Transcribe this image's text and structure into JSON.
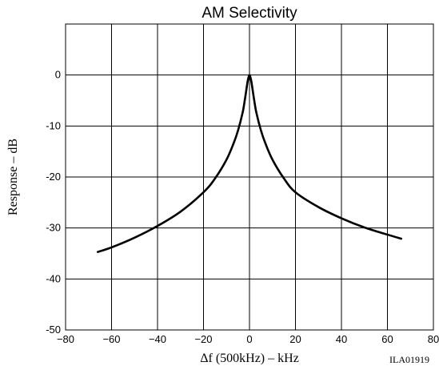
{
  "chart_data": {
    "type": "line",
    "title": "AM Selectivity",
    "xlabel": "Δf (500kHz)  –  kHz",
    "ylabel": "Response  –  dB",
    "figure_code": "ILA01919",
    "xlim": [
      -80,
      80
    ],
    "ylim": [
      -50,
      10
    ],
    "xticks": [
      -80,
      -60,
      -40,
      -20,
      0,
      20,
      40,
      60,
      80
    ],
    "yticks": [
      0,
      -10,
      -20,
      -30,
      -40,
      -50
    ],
    "xtick_labels": [
      "−80",
      "−60",
      "−40",
      "−20",
      "0",
      "20",
      "40",
      "60",
      "80"
    ],
    "ytick_labels": [
      "0",
      "-10",
      "-20",
      "-30",
      "-40",
      "-50"
    ],
    "grid": true,
    "series": [
      {
        "x": [
          -66,
          -60,
          -50,
          -40,
          -30,
          -20,
          -15,
          -10,
          -7,
          -5,
          -3,
          -2,
          -1,
          -0.5,
          0,
          0.5,
          1,
          2,
          3,
          5,
          7,
          10,
          15,
          20,
          30,
          40,
          50,
          60,
          66
        ],
        "y": [
          -34.7,
          -33.8,
          -31.9,
          -29.6,
          -26.8,
          -23.0,
          -20.3,
          -16.6,
          -13.5,
          -10.9,
          -7.4,
          -4.8,
          -1.8,
          -0.6,
          0,
          -0.6,
          -1.8,
          -4.8,
          -7.4,
          -10.9,
          -13.5,
          -16.6,
          -20.3,
          -23.0,
          -25.9,
          -28.1,
          -29.9,
          -31.3,
          -32.1
        ]
      }
    ]
  }
}
